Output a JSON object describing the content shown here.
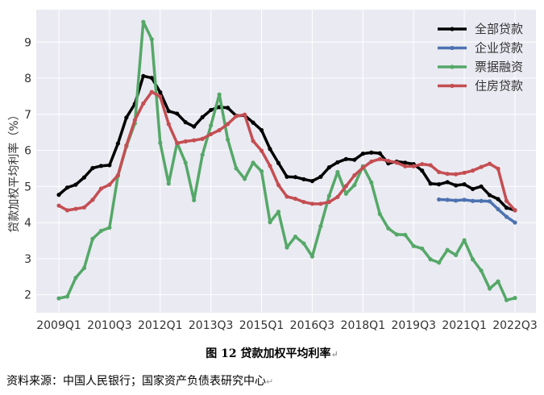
{
  "figure_caption": "图 12  贷款加权平均利率",
  "source_text": "资料来源：中国人民银行；国家资产负债表研究中心",
  "chart_data": {
    "type": "line",
    "title": "",
    "xlabel": "",
    "ylabel": "贷款加权平均利率（%）",
    "ylim": [
      1.5,
      9.9
    ],
    "yticks": [
      2,
      3,
      4,
      5,
      6,
      7,
      8,
      9
    ],
    "grid": true,
    "legend_position": "top-right",
    "x": [
      "2009Q1",
      "2009Q2",
      "2009Q3",
      "2009Q4",
      "2010Q1",
      "2010Q2",
      "2010Q3",
      "2010Q4",
      "2011Q1",
      "2011Q2",
      "2011Q3",
      "2011Q4",
      "2012Q1",
      "2012Q2",
      "2012Q3",
      "2012Q4",
      "2013Q1",
      "2013Q2",
      "2013Q3",
      "2013Q4",
      "2014Q1",
      "2014Q2",
      "2014Q3",
      "2014Q4",
      "2015Q1",
      "2015Q2",
      "2015Q3",
      "2015Q4",
      "2016Q1",
      "2016Q2",
      "2016Q3",
      "2016Q4",
      "2017Q1",
      "2017Q2",
      "2017Q3",
      "2017Q4",
      "2018Q1",
      "2018Q2",
      "2018Q3",
      "2018Q4",
      "2019Q1",
      "2019Q2",
      "2019Q3",
      "2019Q4",
      "2020Q1",
      "2020Q2",
      "2020Q3",
      "2020Q4",
      "2021Q1",
      "2021Q2",
      "2021Q3",
      "2021Q4",
      "2022Q1",
      "2022Q2",
      "2022Q3"
    ],
    "xtick_labels": [
      "2009Q1",
      "2010Q3",
      "2012Q1",
      "2013Q3",
      "2015Q1",
      "2016Q3",
      "2018Q1",
      "2019Q3",
      "2021Q1",
      "2022Q3"
    ],
    "series": [
      {
        "name": "全部贷款",
        "color": "#000000",
        "values": [
          4.77,
          4.97,
          5.05,
          5.25,
          5.51,
          5.57,
          5.59,
          6.19,
          6.91,
          7.29,
          8.06,
          8.01,
          7.61,
          7.09,
          7.02,
          6.78,
          6.66,
          6.92,
          7.12,
          7.2,
          7.18,
          6.96,
          6.97,
          6.77,
          6.56,
          6.04,
          5.65,
          5.27,
          5.26,
          5.2,
          5.15,
          5.27,
          5.53,
          5.67,
          5.76,
          5.74,
          5.91,
          5.94,
          5.92,
          5.64,
          5.69,
          5.66,
          5.62,
          5.44,
          5.08,
          5.06,
          5.12,
          5.03,
          5.06,
          4.93,
          5.0,
          4.76,
          4.65,
          4.41,
          4.34
        ]
      },
      {
        "name": "企业贷款",
        "color": "#4c72b0",
        "values": [
          null,
          null,
          null,
          null,
          null,
          null,
          null,
          null,
          null,
          null,
          null,
          null,
          null,
          null,
          null,
          null,
          null,
          null,
          null,
          null,
          null,
          null,
          null,
          null,
          null,
          null,
          null,
          null,
          null,
          null,
          null,
          null,
          null,
          null,
          null,
          null,
          null,
          null,
          null,
          null,
          null,
          null,
          null,
          null,
          null,
          4.64,
          4.63,
          4.61,
          4.63,
          4.6,
          4.6,
          4.59,
          4.37,
          4.16,
          4.0
        ]
      },
      {
        "name": "票据融资",
        "color": "#55a868",
        "values": [
          1.9,
          1.95,
          2.47,
          2.74,
          3.55,
          3.77,
          3.86,
          5.3,
          6.11,
          6.75,
          9.56,
          9.08,
          6.21,
          5.08,
          6.21,
          5.66,
          4.62,
          5.88,
          6.69,
          7.55,
          6.3,
          5.5,
          5.21,
          5.66,
          5.42,
          4.01,
          4.3,
          3.31,
          3.61,
          3.42,
          3.06,
          3.9,
          4.74,
          5.4,
          4.8,
          5.04,
          5.56,
          5.11,
          4.24,
          3.84,
          3.67,
          3.66,
          3.35,
          3.28,
          2.98,
          2.89,
          3.24,
          3.1,
          3.51,
          2.98,
          2.67,
          2.17,
          2.37,
          1.85,
          1.91
        ]
      },
      {
        "name": "住房贷款",
        "color": "#c44e52",
        "values": [
          4.47,
          4.34,
          4.38,
          4.42,
          4.63,
          4.94,
          5.05,
          5.31,
          6.14,
          6.84,
          7.3,
          7.62,
          7.49,
          6.73,
          6.2,
          6.25,
          6.28,
          6.32,
          6.45,
          6.56,
          6.73,
          6.95,
          6.99,
          6.26,
          5.99,
          5.57,
          5.04,
          4.72,
          4.66,
          4.57,
          4.52,
          4.52,
          4.57,
          4.71,
          5.01,
          5.31,
          5.52,
          5.69,
          5.76,
          5.71,
          5.66,
          5.56,
          5.56,
          5.62,
          5.59,
          5.4,
          5.35,
          5.34,
          5.38,
          5.44,
          5.54,
          5.63,
          5.49,
          4.6,
          4.34
        ]
      }
    ]
  }
}
